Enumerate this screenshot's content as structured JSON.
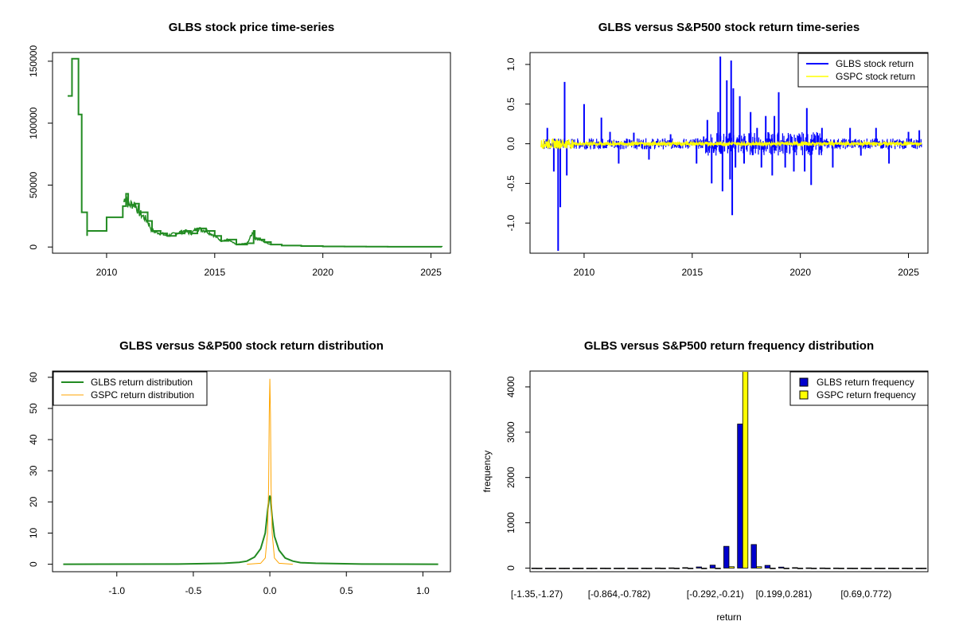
{
  "colors": {
    "glbs_price": "#228B22",
    "glbs_return": "#0000FF",
    "gspc_return": "#FFFF00",
    "glbs_density": "#228B22",
    "gspc_density": "#FFA500",
    "bar_glbs": "#0000CD",
    "bar_gspc": "#FFFF00"
  },
  "chart_data": [
    {
      "type": "line",
      "title": "GLBS stock price time-series",
      "xlabel": "",
      "ylabel": "",
      "xlim": [
        2007.5,
        2025.9
      ],
      "ylim": [
        -5000,
        157000
      ],
      "x_ticks": [
        2010,
        2015,
        2020,
        2025
      ],
      "x_tick_labels": [
        "2010",
        "2015",
        "2020",
        "2025"
      ],
      "y_ticks": [
        0,
        50000,
        100000,
        150000
      ],
      "y_tick_labels": [
        "0",
        "50000",
        "100000",
        "150000"
      ],
      "series": [
        {
          "x": [
            2008.2,
            2008.4,
            2008.4,
            2008.7,
            2008.7,
            2008.85,
            2008.85,
            2009.0,
            2009.1,
            2009.1,
            2010.0,
            2010.0,
            2010.75,
            2010.75,
            2010.9,
            2011.0,
            2011.3,
            2011.5,
            2011.9,
            2012.1,
            2012.5,
            2012.8,
            2013.2,
            2013.6,
            2013.9,
            2014.2,
            2014.6,
            2015.0,
            2015.3,
            2015.6,
            2016.0,
            2016.5,
            2016.8,
            2016.85,
            2017.1,
            2017.3,
            2017.6,
            2018.1,
            2019.0,
            2020.0,
            2021.0,
            2022.0,
            2023.0,
            2024.0,
            2025.5
          ],
          "values": [
            122000,
            122000,
            152000,
            152000,
            107000,
            107000,
            28000,
            28000,
            9000,
            13000,
            13000,
            24000,
            24000,
            33000,
            43000,
            34000,
            35000,
            28000,
            21000,
            13000,
            11000,
            9000,
            11000,
            13000,
            11000,
            15000,
            13000,
            9000,
            5000,
            6000,
            2000,
            3000,
            13000,
            7000,
            6000,
            4000,
            2000,
            1200,
            800,
            500,
            400,
            300,
            250,
            200,
            100
          ]
        }
      ]
    },
    {
      "type": "line",
      "title": "GLBS versus S&P500 stock return time-series",
      "xlabel": "",
      "ylabel": "",
      "xlim": [
        2007.5,
        2025.9
      ],
      "ylim": [
        -1.38,
        1.15
      ],
      "x_ticks": [
        2010,
        2015,
        2020,
        2025
      ],
      "x_tick_labels": [
        "2010",
        "2015",
        "2020",
        "2025"
      ],
      "y_ticks": [
        -1.0,
        -0.5,
        0.0,
        0.5,
        1.0
      ],
      "y_tick_labels": [
        "-1.0",
        "-0.5",
        "0.0",
        "0.5",
        "1.0"
      ],
      "legend": {
        "position": "top-right",
        "entries": [
          "GLBS stock return",
          "GSPC stock return"
        ]
      },
      "series": [
        {
          "name": "GLBS stock return",
          "spikes": [
            [
              2008.3,
              0.2
            ],
            [
              2008.6,
              -0.35
            ],
            [
              2008.8,
              -1.35
            ],
            [
              2008.9,
              -0.8
            ],
            [
              2009.1,
              0.78
            ],
            [
              2009.2,
              -0.4
            ],
            [
              2010.0,
              0.5
            ],
            [
              2010.8,
              0.33
            ],
            [
              2011.2,
              0.15
            ],
            [
              2011.6,
              -0.25
            ],
            [
              2012.3,
              0.14
            ],
            [
              2013.0,
              -0.2
            ],
            [
              2014.0,
              0.12
            ],
            [
              2015.2,
              -0.25
            ],
            [
              2015.7,
              0.3
            ],
            [
              2015.9,
              -0.5
            ],
            [
              2016.2,
              0.4
            ],
            [
              2016.3,
              1.1
            ],
            [
              2016.4,
              -0.6
            ],
            [
              2016.6,
              0.8
            ],
            [
              2016.75,
              -0.45
            ],
            [
              2016.8,
              1.05
            ],
            [
              2016.85,
              -0.9
            ],
            [
              2016.9,
              0.7
            ],
            [
              2017.0,
              -0.3
            ],
            [
              2017.2,
              0.6
            ],
            [
              2017.4,
              -0.25
            ],
            [
              2017.7,
              0.4
            ],
            [
              2018.0,
              0.2
            ],
            [
              2018.2,
              -0.3
            ],
            [
              2018.4,
              0.35
            ],
            [
              2018.7,
              -0.4
            ],
            [
              2018.8,
              0.35
            ],
            [
              2019.0,
              0.65
            ],
            [
              2019.3,
              -0.3
            ],
            [
              2019.7,
              -0.35
            ],
            [
              2020.2,
              -0.35
            ],
            [
              2020.3,
              0.45
            ],
            [
              2020.5,
              -0.52
            ],
            [
              2021.0,
              0.2
            ],
            [
              2021.5,
              -0.3
            ],
            [
              2022.3,
              0.2
            ],
            [
              2022.8,
              -0.15
            ],
            [
              2023.5,
              0.2
            ],
            [
              2024.1,
              -0.25
            ],
            [
              2025.0,
              0.15
            ],
            [
              2025.5,
              0.17
            ]
          ],
          "baseline_range": [
            -0.06,
            0.06
          ]
        },
        {
          "name": "GSPC stock return",
          "baseline_range": [
            -0.04,
            0.04
          ],
          "xrange": [
            2008.0,
            2025.6
          ]
        }
      ]
    },
    {
      "type": "line",
      "title": "GLBS versus S&P500 stock return distribution",
      "xlabel": "",
      "ylabel": "",
      "xlim": [
        -1.42,
        1.18
      ],
      "ylim": [
        -2.4,
        62
      ],
      "x_ticks": [
        -1.0,
        -0.5,
        0.0,
        0.5,
        1.0
      ],
      "x_tick_labels": [
        "-1.0",
        "-0.5",
        "0.0",
        "0.5",
        "1.0"
      ],
      "y_ticks": [
        0,
        10,
        20,
        30,
        40,
        50,
        60
      ],
      "y_tick_labels": [
        "0",
        "10",
        "20",
        "30",
        "40",
        "50",
        "60"
      ],
      "legend": {
        "position": "top-left",
        "entries": [
          "GLBS return distribution",
          "GSPC return distribution"
        ]
      },
      "series": [
        {
          "name": "GLBS return distribution",
          "x": [
            -1.35,
            -0.6,
            -0.3,
            -0.2,
            -0.15,
            -0.1,
            -0.06,
            -0.03,
            -0.015,
            -0.005,
            0.0,
            0.005,
            0.015,
            0.03,
            0.06,
            0.1,
            0.15,
            0.2,
            0.3,
            0.6,
            1.1
          ],
          "values": [
            0.0,
            0.05,
            0.3,
            0.6,
            1.0,
            2.3,
            5.0,
            10.0,
            17.0,
            21.0,
            22.0,
            21.0,
            15.0,
            9.0,
            4.5,
            2.0,
            1.0,
            0.5,
            0.3,
            0.05,
            0.0
          ]
        },
        {
          "name": "GSPC return distribution",
          "x": [
            -0.15,
            -0.06,
            -0.03,
            -0.015,
            -0.008,
            -0.004,
            0.0,
            0.004,
            0.008,
            0.015,
            0.03,
            0.06,
            0.15
          ],
          "values": [
            0.0,
            0.3,
            2.0,
            10.0,
            25.0,
            48.0,
            59.5,
            48.0,
            25.0,
            10.0,
            2.0,
            0.3,
            0.0
          ]
        }
      ]
    },
    {
      "type": "bar",
      "title": "GLBS versus S&P500 return frequency distribution",
      "xlabel": "return",
      "ylabel": "frequency",
      "ylim": [
        -80,
        4350
      ],
      "y_ticks": [
        0,
        1000,
        2000,
        3000,
        4000
      ],
      "y_tick_labels": [
        "0",
        "1000",
        "2000",
        "3000",
        "4000"
      ],
      "x_tick_labels": [
        "[-1.35,-1.27)",
        "[-0.864,-0.782)",
        "[-0.292,-0.21)",
        "[0.199,0.281)",
        "[0.69,0.772)"
      ],
      "x_tick_indices": [
        0,
        6,
        13,
        18,
        24
      ],
      "legend": {
        "position": "top-right",
        "entries": [
          "GLBS return frequency",
          "GSPC return frequency"
        ]
      },
      "series": [
        {
          "name": "GLBS return frequency",
          "values": [
            1,
            0,
            0,
            0,
            0,
            1,
            0,
            1,
            1,
            3,
            5,
            10,
            25,
            65,
            480,
            3180,
            520,
            60,
            22,
            10,
            5,
            3,
            2,
            1,
            1,
            1,
            1,
            1,
            0
          ]
        },
        {
          "name": "GSPC return frequency",
          "values": [
            0,
            0,
            0,
            0,
            0,
            0,
            0,
            0,
            0,
            0,
            0,
            0,
            0,
            0,
            30,
            4400,
            30,
            0,
            0,
            0,
            0,
            0,
            0,
            0,
            0,
            0,
            0,
            0,
            0
          ]
        }
      ]
    }
  ]
}
